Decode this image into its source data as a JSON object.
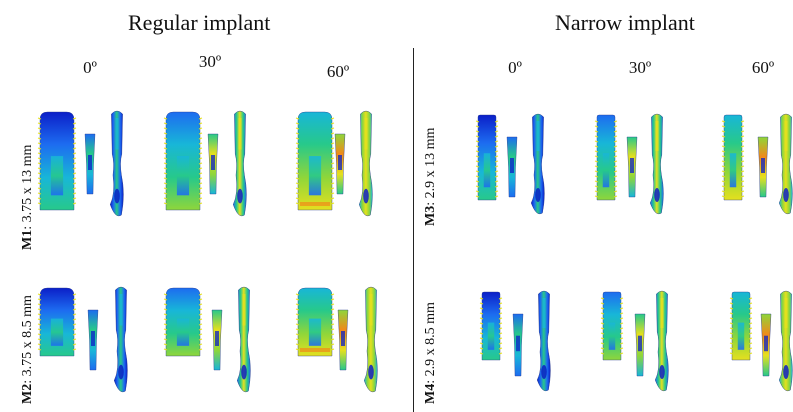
{
  "sections": {
    "regular": {
      "title": "Regular implant",
      "angles": [
        "0º",
        "30º",
        "60º"
      ],
      "rows": [
        {
          "model": "M1",
          "size": ": 3.75 x 13 mm"
        },
        {
          "model": "M2",
          "size": ": 3.75 x 8.5 mm"
        }
      ]
    },
    "narrow": {
      "title": "Narrow implant",
      "angles": [
        "0º",
        "30º",
        "60º"
      ],
      "rows": [
        {
          "model": "M3",
          "size": ": 2.9 x 13 mm"
        },
        {
          "model": "M4",
          "size": ": 2.9 x 8.5 mm"
        }
      ]
    }
  },
  "stress_colors": [
    "#0b1fc8",
    "#1d6cf0",
    "#18b6d8",
    "#27c98a",
    "#8fd63a",
    "#e5e01e",
    "#f08a1a",
    "#e0201a"
  ]
}
